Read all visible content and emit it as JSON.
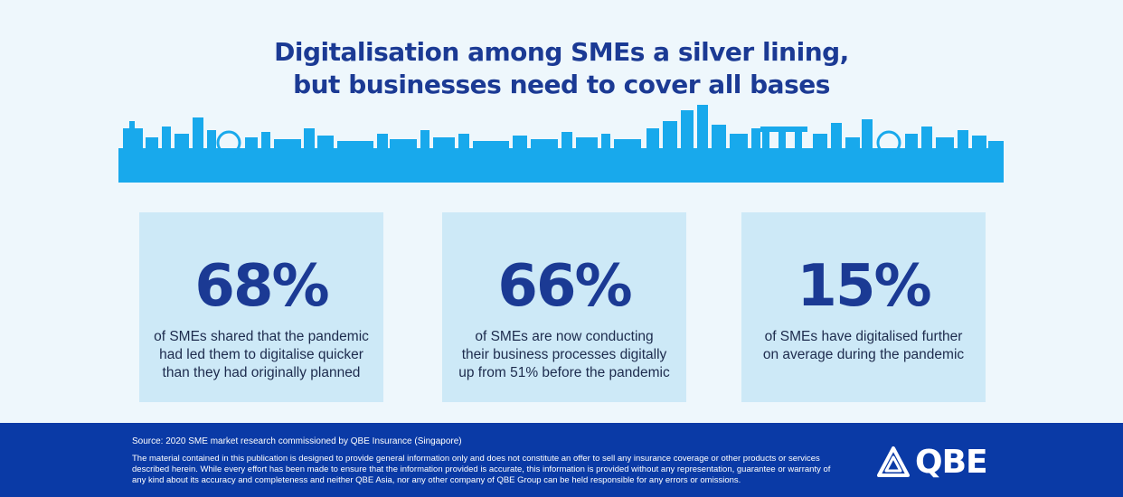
{
  "title": {
    "line1": "Digitalisation among SMEs a silver lining,",
    "line2": "but businesses need to cover all bases"
  },
  "colors": {
    "background": "#eef7fc",
    "accent": "#1b3a94",
    "skyline": "#18a9ec",
    "card": "#cde9f7",
    "footer": "#0a3aa6"
  },
  "stats": [
    {
      "value": "68%",
      "text": "of SMEs shared that the pandemic\nhad led them to digitalise quicker\nthan they had originally planned"
    },
    {
      "value": "66%",
      "text": "of SMEs are now conducting\ntheir business processes digitally\nup from 51% before the pandemic"
    },
    {
      "value": "15%",
      "text": "of SMEs have digitalised further\non average during the pandemic"
    }
  ],
  "footer": {
    "source": "Source: 2020 SME market research commissioned by QBE Insurance (Singapore)",
    "disclaimer": "The material contained in this publication is designed to provide general information only and does not constitute an offer to sell any insurance coverage or other products or services described herein. While every effort has been made to ensure that the information provided is accurate, this information is provided without any representation, guarantee or warranty of any kind about its accuracy and completeness and neither QBE Asia, nor any other company of QBE Group can be held responsible for any errors or omissions.",
    "logo_text": "QBE",
    "logo_icon": "qbe-triangle-logo-icon"
  }
}
